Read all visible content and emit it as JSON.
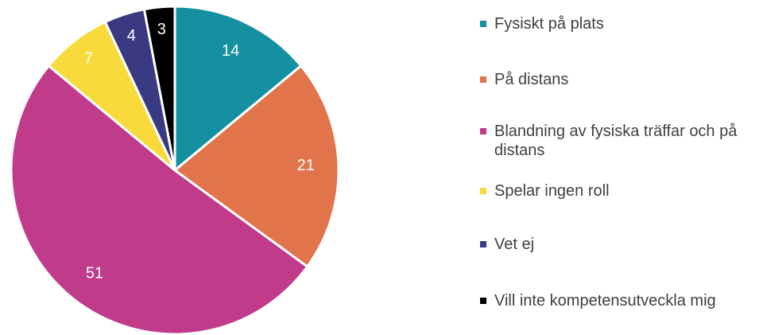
{
  "chart_data": {
    "type": "pie",
    "categories": [
      "Fysiskt på plats",
      "På distans",
      "Blandning av fysiska träffar och på distans",
      "Spelar ingen roll",
      "Vet ej",
      "Vill inte kompetensutveckla mig"
    ],
    "values": [
      14,
      21,
      51,
      7,
      4,
      3
    ],
    "colors": [
      "#1590a0",
      "#e1744b",
      "#c13b8b",
      "#f8da3b",
      "#393a82",
      "#000000"
    ]
  }
}
